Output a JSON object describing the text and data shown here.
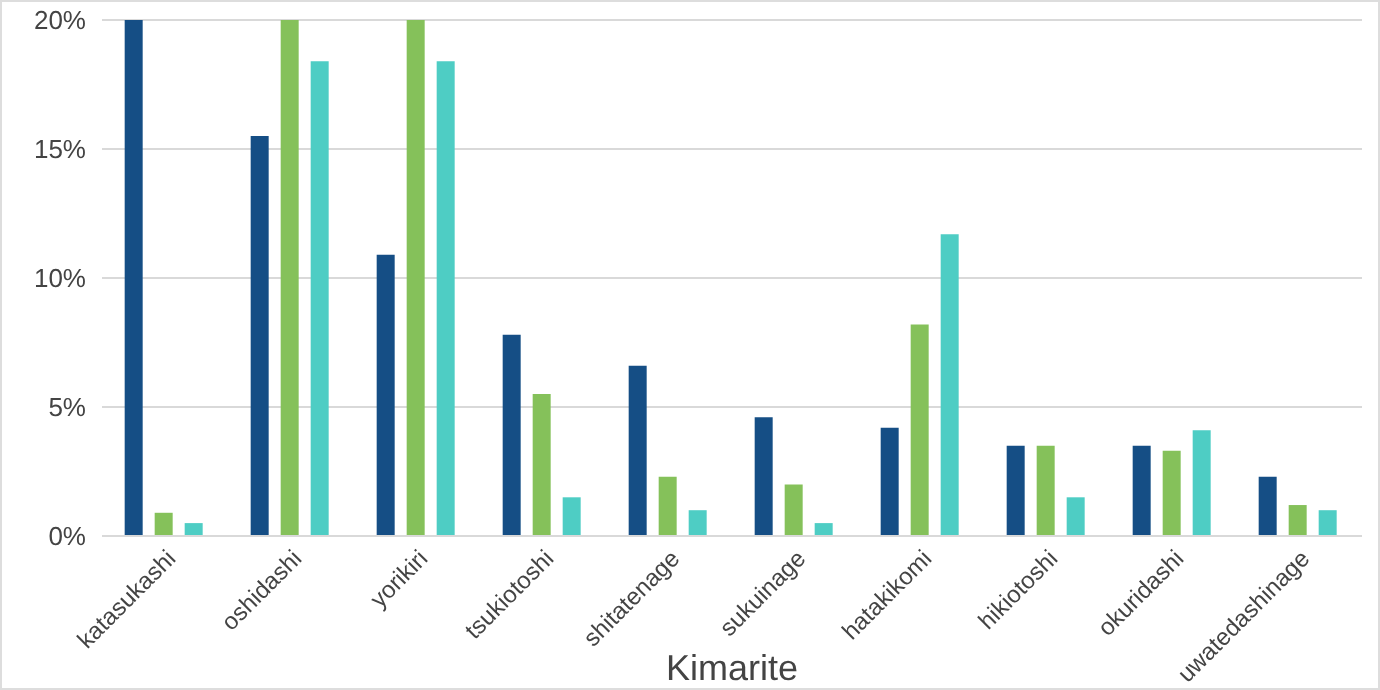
{
  "chart_data": {
    "type": "bar",
    "xlabel": "Kimarite",
    "categories": [
      "katasukashi",
      "oshidashi",
      "yorikiri",
      "tsukiotoshi",
      "shitatenage",
      "sukuinage",
      "hatakikomi",
      "hikiotoshi",
      "okuridashi",
      "uwatedashinage"
    ],
    "series": [
      {
        "color": "#154e85",
        "values": [
          20,
          15.5,
          10.9,
          7.8,
          6.6,
          4.6,
          4.2,
          3.5,
          3.5,
          2.3
        ]
      },
      {
        "color": "#85c15a",
        "values": [
          0.9,
          20,
          20,
          5.5,
          2.3,
          2.0,
          8.2,
          3.5,
          3.3,
          1.2
        ]
      },
      {
        "color": "#4ecdc4",
        "values": [
          0.5,
          18.4,
          18.4,
          1.5,
          1.0,
          0.5,
          11.7,
          1.5,
          4.1,
          1.0
        ]
      }
    ],
    "ylim": [
      0,
      20
    ],
    "yticks": [
      {
        "value": 0,
        "label": "0%"
      },
      {
        "value": 5,
        "label": "5%"
      },
      {
        "value": 10,
        "label": "10%"
      },
      {
        "value": 15,
        "label": "15%"
      },
      {
        "value": 20,
        "label": "20%"
      }
    ],
    "grid": "y"
  }
}
